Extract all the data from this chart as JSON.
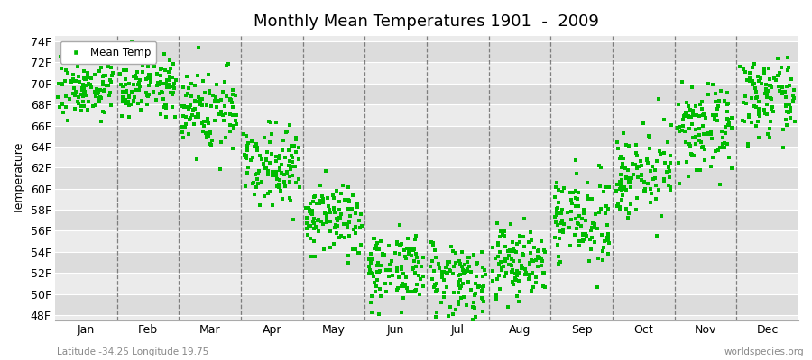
{
  "title": "Monthly Mean Temperatures 1901  -  2009",
  "ylabel": "Temperature",
  "xlabel_months": [
    "Jan",
    "Feb",
    "Mar",
    "Apr",
    "May",
    "Jun",
    "Jul",
    "Aug",
    "Sep",
    "Oct",
    "Nov",
    "Dec"
  ],
  "yticks": [
    48,
    50,
    52,
    54,
    56,
    58,
    60,
    62,
    64,
    66,
    68,
    70,
    72,
    74
  ],
  "ytick_labels": [
    "48F",
    "50F",
    "52F",
    "54F",
    "56F",
    "58F",
    "60F",
    "62F",
    "64F",
    "66F",
    "68F",
    "70F",
    "72F",
    "74F"
  ],
  "ylim": [
    47.5,
    74.5
  ],
  "dot_color": "#00BB00",
  "dot_size": 7,
  "background_color": "#ffffff",
  "band_color_dark": "#dcdcdc",
  "band_color_light": "#ebebeb",
  "vline_color": "#666666",
  "legend_label": "Mean Temp",
  "footnote_left": "Latitude -34.25 Longitude 19.75",
  "footnote_right": "worldspecies.org",
  "num_years": 109,
  "monthly_means": [
    69.5,
    70.0,
    67.5,
    62.5,
    57.0,
    52.5,
    51.5,
    53.0,
    57.0,
    61.5,
    65.5,
    68.5
  ],
  "monthly_stds": [
    1.3,
    1.4,
    2.0,
    1.8,
    1.8,
    1.8,
    1.8,
    1.8,
    2.0,
    2.0,
    2.0,
    1.8
  ],
  "seed": 7
}
